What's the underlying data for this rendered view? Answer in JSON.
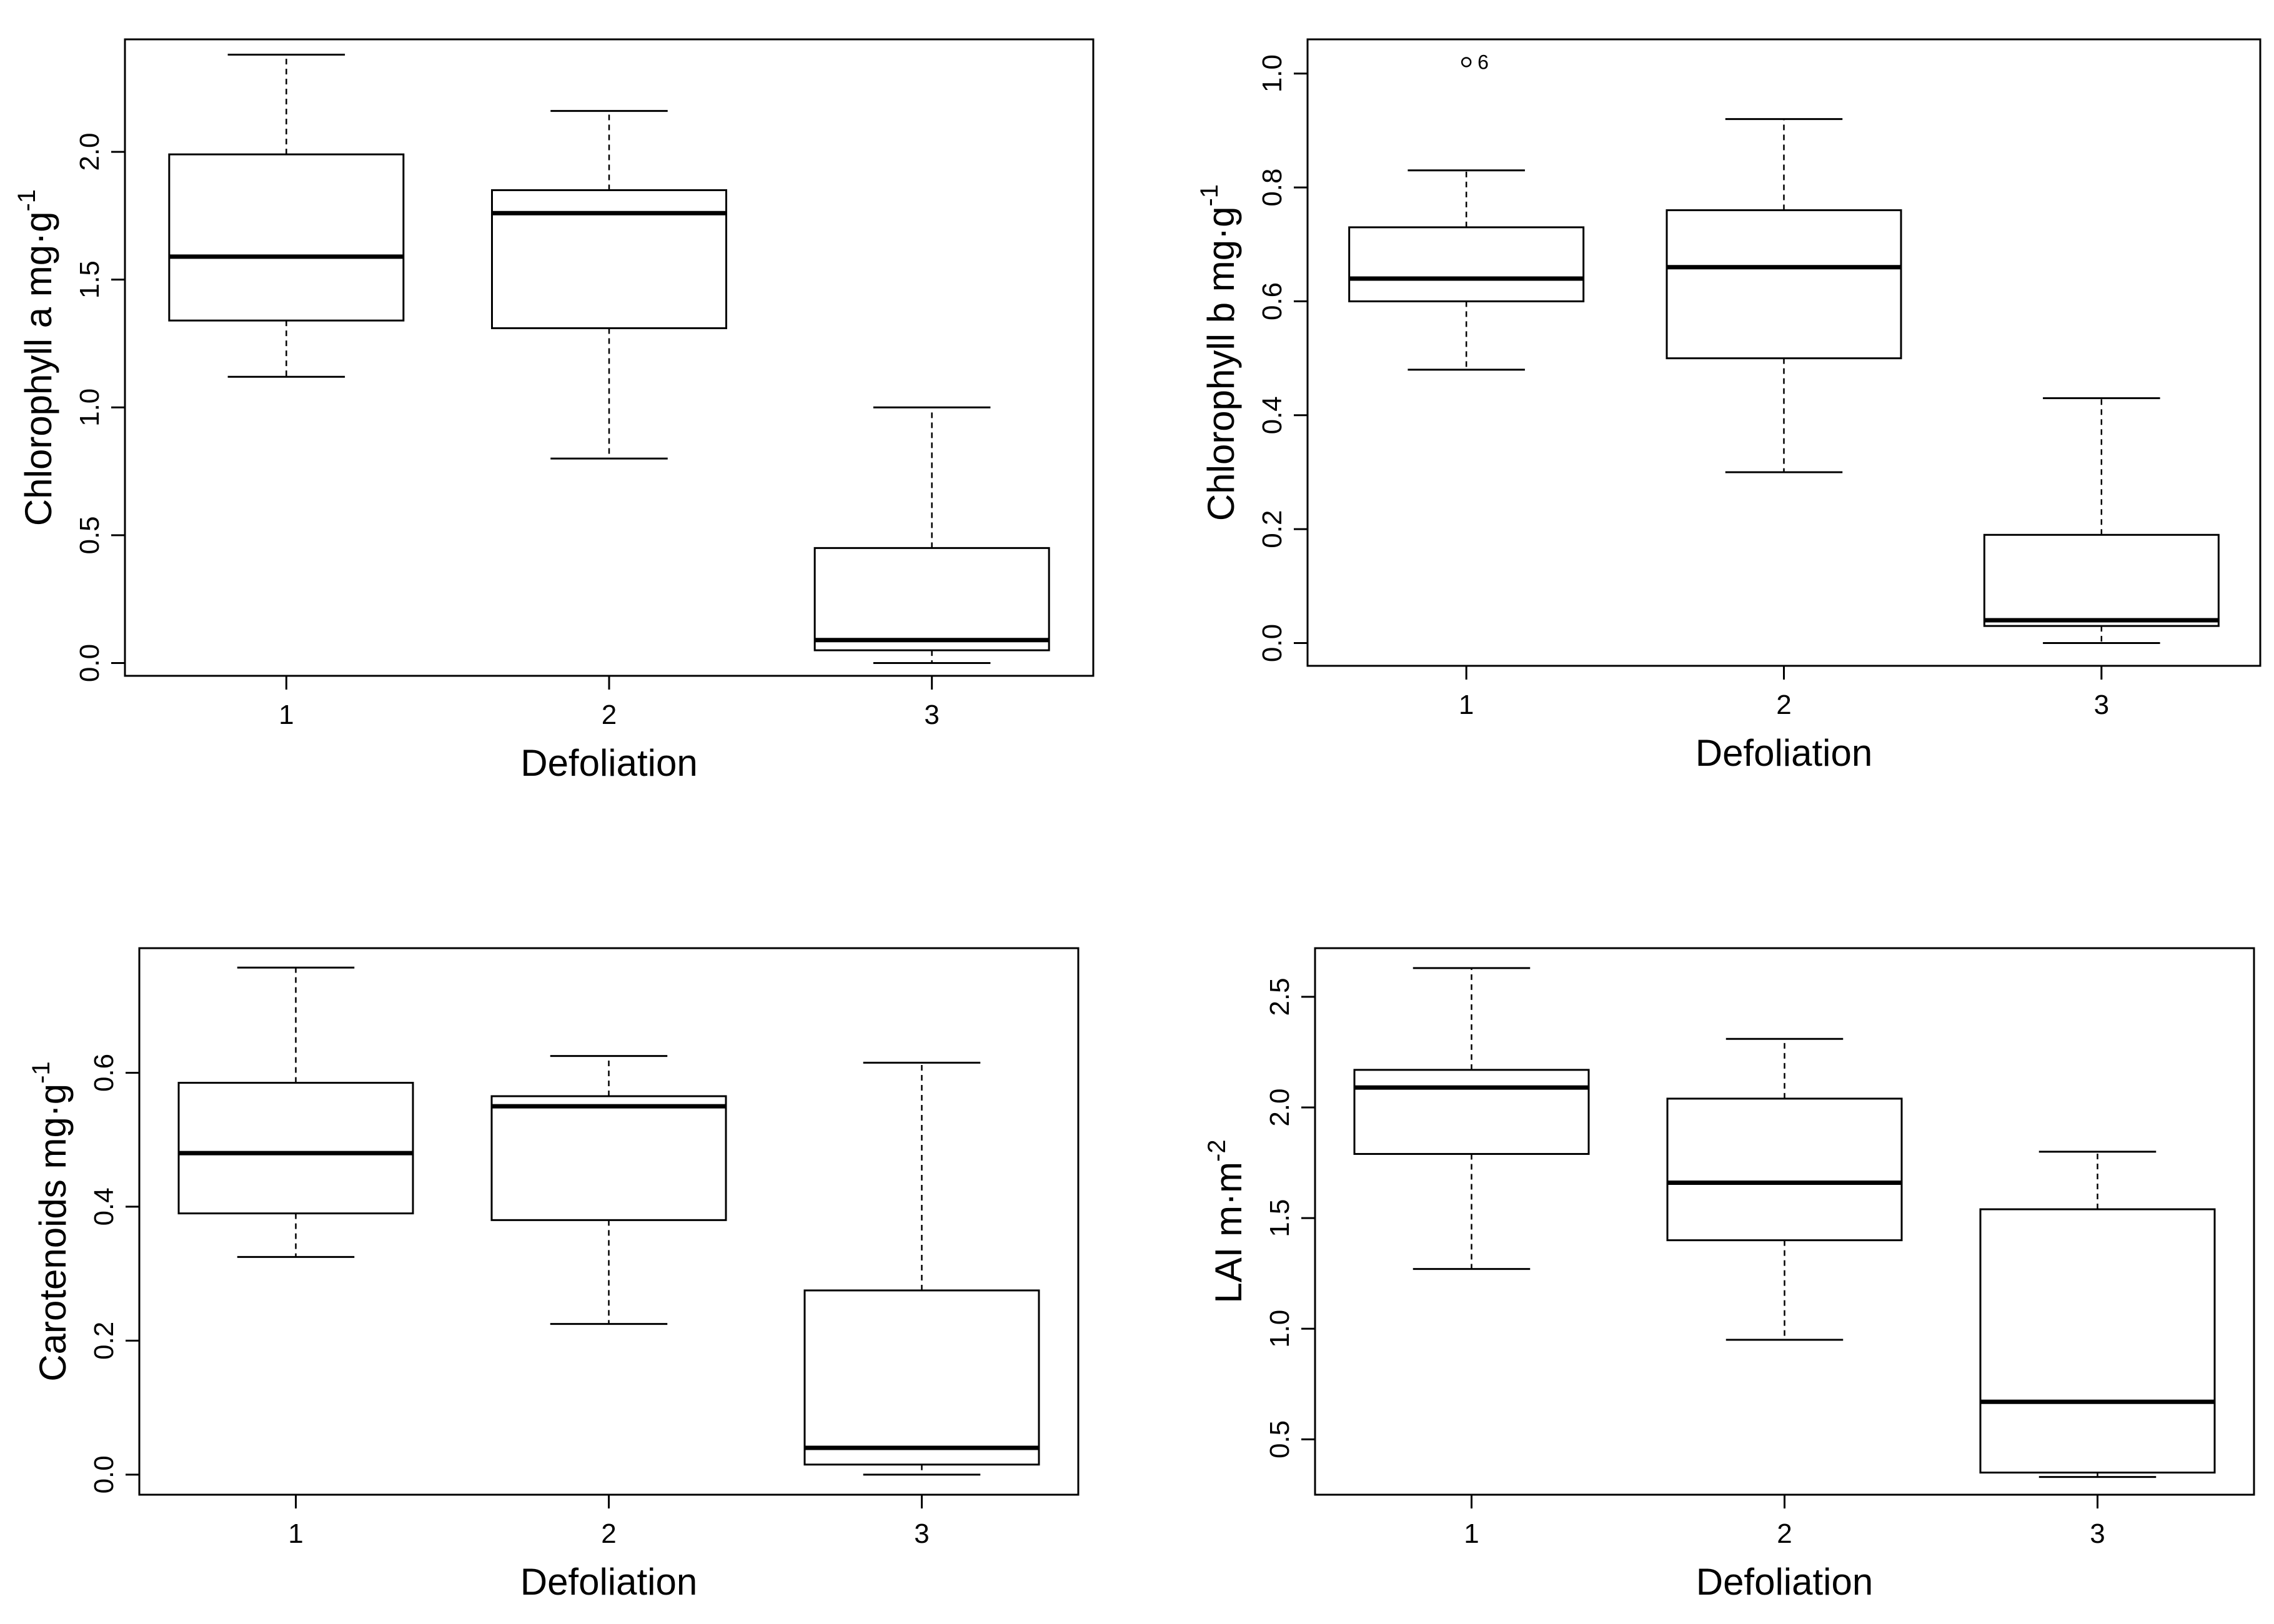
{
  "chart_data": [
    {
      "type": "boxplot",
      "xlabel": "Defoliation",
      "ylabel": "Chlorophyll a mg·g",
      "ylabel_sup": "-1",
      "categories": [
        "1",
        "2",
        "3"
      ],
      "yticks": [
        "0.0",
        "0.5",
        "1.0",
        "1.5",
        "2.0"
      ],
      "ytick_values": [
        0,
        0.5,
        1.0,
        1.5,
        2.0
      ],
      "ylim": [
        -0.05,
        2.44
      ],
      "boxes": [
        {
          "category": "1",
          "min": 1.12,
          "q1": 1.34,
          "median": 1.59,
          "q3": 1.99,
          "max": 2.38
        },
        {
          "category": "2",
          "min": 0.8,
          "q1": 1.31,
          "median": 1.76,
          "q3": 1.85,
          "max": 2.16
        },
        {
          "category": "3",
          "min": 0.0,
          "q1": 0.05,
          "median": 0.09,
          "q3": 0.45,
          "max": 1.0
        }
      ],
      "outliers": []
    },
    {
      "type": "boxplot",
      "xlabel": "Defoliation",
      "ylabel": "Chlorophyll b mg·g",
      "ylabel_sup": "-1",
      "categories": [
        "1",
        "2",
        "3"
      ],
      "yticks": [
        "0.0",
        "0.2",
        "0.4",
        "0.6",
        "0.8",
        "1.0"
      ],
      "ytick_values": [
        0,
        0.2,
        0.4,
        0.6,
        0.8,
        1.0
      ],
      "ylim": [
        -0.04,
        1.06
      ],
      "boxes": [
        {
          "category": "1",
          "min": 0.48,
          "q1": 0.6,
          "median": 0.64,
          "q3": 0.73,
          "max": 0.83
        },
        {
          "category": "2",
          "min": 0.3,
          "q1": 0.5,
          "median": 0.66,
          "q3": 0.76,
          "max": 0.92
        },
        {
          "category": "3",
          "min": 0.0,
          "q1": 0.03,
          "median": 0.04,
          "q3": 0.19,
          "max": 0.43
        }
      ],
      "outliers": [
        {
          "category": "1",
          "value": 1.02,
          "label": "6"
        }
      ]
    },
    {
      "type": "boxplot",
      "xlabel": "Defoliation",
      "ylabel": "Carotenoids mg·g",
      "ylabel_sup": "-1",
      "categories": [
        "1",
        "2",
        "3"
      ],
      "yticks": [
        "0.0",
        "0.2",
        "0.4",
        "0.6"
      ],
      "ytick_values": [
        0,
        0.2,
        0.4,
        0.6
      ],
      "ylim": [
        -0.03,
        0.786
      ],
      "boxes": [
        {
          "category": "1",
          "min": 0.325,
          "q1": 0.39,
          "median": 0.48,
          "q3": 0.585,
          "max": 0.757
        },
        {
          "category": "2",
          "min": 0.225,
          "q1": 0.38,
          "median": 0.55,
          "q3": 0.565,
          "max": 0.625
        },
        {
          "category": "3",
          "min": 0.0,
          "q1": 0.015,
          "median": 0.04,
          "q3": 0.275,
          "max": 0.615
        }
      ],
      "outliers": []
    },
    {
      "type": "boxplot",
      "xlabel": "Defoliation",
      "ylabel": "LAI m·m",
      "ylabel_sup": "-2",
      "categories": [
        "1",
        "2",
        "3"
      ],
      "yticks": [
        "0.5",
        "1.0",
        "1.5",
        "2.0",
        "2.5"
      ],
      "ytick_values": [
        0.5,
        1.0,
        1.5,
        2.0,
        2.5
      ],
      "ylim": [
        0.25,
        2.72
      ],
      "boxes": [
        {
          "category": "1",
          "min": 1.27,
          "q1": 1.79,
          "median": 2.09,
          "q3": 2.17,
          "max": 2.63
        },
        {
          "category": "2",
          "min": 0.95,
          "q1": 1.4,
          "median": 1.66,
          "q3": 2.04,
          "max": 2.31
        },
        {
          "category": "3",
          "min": 0.33,
          "q1": 0.35,
          "median": 0.67,
          "q3": 1.54,
          "max": 1.8
        }
      ],
      "outliers": []
    }
  ]
}
